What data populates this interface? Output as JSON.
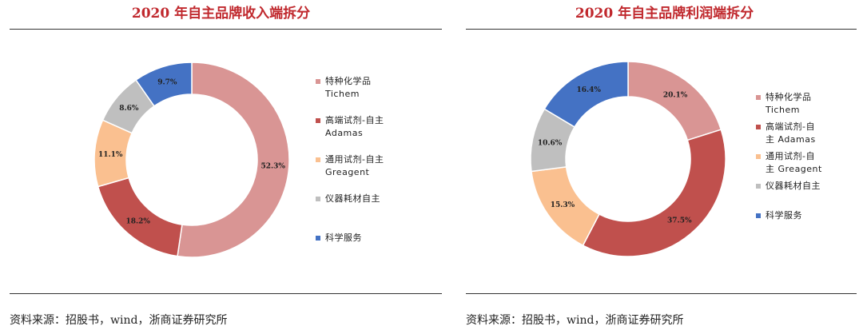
{
  "colors": {
    "title": "#c0282d",
    "palette": [
      "#d99594",
      "#c0504d",
      "#fac090",
      "#bfbfbf",
      "#4472c4"
    ]
  },
  "left": {
    "title": "2020 年自主品牌收入端拆分",
    "source": "资料来源：招股书，wind，浙商证券研究所",
    "legend": [
      {
        "label": "特种化学品\nTichem"
      },
      {
        "label": "高端试剂-自主\nAdamas"
      },
      {
        "label": "通用试剂-自主\nGreagent"
      },
      {
        "label": "仪器耗材自主"
      },
      {
        "label": "科学服务"
      }
    ]
  },
  "right": {
    "title": "2020 年自主品牌利润端拆分",
    "source": "资料来源：招股书，wind，浙商证券研究所",
    "legend": [
      {
        "label": "特种化学品\nTichem"
      },
      {
        "label": "高端试剂-自\n主 Adamas"
      },
      {
        "label": "通用试剂-自\n主 Greagent"
      },
      {
        "label": "仪器耗材自主"
      },
      {
        "label": "科学服务"
      }
    ]
  },
  "chart_data": [
    {
      "type": "pie",
      "variant": "donut",
      "title": "2020 年自主品牌收入端拆分",
      "categories": [
        "特种化学品 Tichem",
        "高端试剂-自主 Adamas",
        "通用试剂-自主 Greagent",
        "仪器耗材自主",
        "科学服务"
      ],
      "values": [
        52.3,
        18.2,
        11.1,
        8.6,
        9.7
      ],
      "labels": [
        "52.3%",
        "18.2%",
        "11.1%",
        "8.6%",
        "9.7%"
      ],
      "legend_position": "right"
    },
    {
      "type": "pie",
      "variant": "donut",
      "title": "2020 年自主品牌利润端拆分",
      "categories": [
        "特种化学品 Tichem",
        "高端试剂-自主 Adamas",
        "通用试剂-自主 Greagent",
        "仪器耗材自主",
        "科学服务"
      ],
      "values": [
        20.1,
        37.5,
        15.3,
        10.6,
        16.4
      ],
      "labels": [
        "20.1%",
        "37.5%",
        "15.3%",
        "10.6%",
        "16.4%"
      ],
      "legend_position": "right"
    }
  ]
}
